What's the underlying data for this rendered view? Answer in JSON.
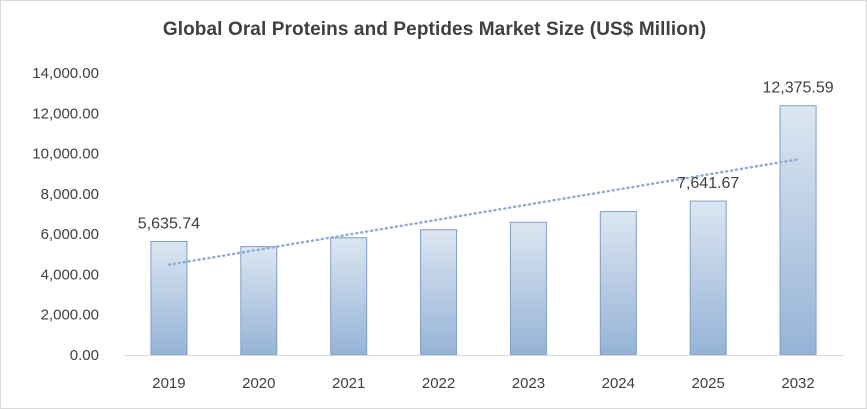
{
  "chart_data": {
    "type": "bar",
    "title": "Global Oral Proteins and Peptides Market Size (US$ Million)",
    "xlabel": "",
    "ylabel": "",
    "categories": [
      "2019",
      "2020",
      "2021",
      "2022",
      "2023",
      "2024",
      "2025",
      "2032"
    ],
    "values": [
      5635.74,
      5380,
      5820,
      6220,
      6590,
      7120,
      7641.67,
      12375.59
    ],
    "data_labels": [
      "5,635.74",
      "",
      "",
      "",
      "",
      "",
      "7,641.67",
      "12,375.59"
    ],
    "ylim": [
      0,
      14000
    ],
    "yticks": [
      "0.00",
      "2,000.00",
      "4,000.00",
      "6,000.00",
      "8,000.00",
      "10,000.00",
      "12,000.00",
      "14,000.00"
    ],
    "trendline": {
      "type": "linear",
      "style": "dotted"
    },
    "grid": false,
    "legend": "none",
    "colors": {
      "bar_top": "#dce6f1",
      "bar_bottom": "#95b3d7",
      "bar_border": "#7f9ec7",
      "trend": "#8eaed2",
      "axis": "#d9d9d9",
      "text": "#404040"
    }
  }
}
